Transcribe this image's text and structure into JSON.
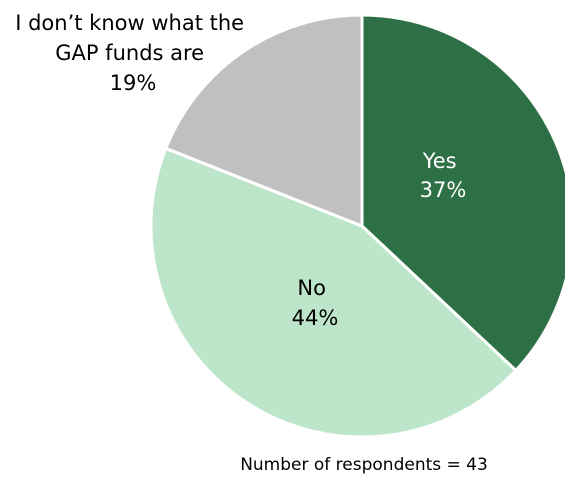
{
  "chart_data": {
    "type": "pie",
    "slices": [
      {
        "label": "Yes",
        "value": 37,
        "value_label": "37%",
        "color": "#2e7045",
        "text_color": "#ffffff"
      },
      {
        "label": "No",
        "value": 44,
        "value_label": "44%",
        "color": "#bde5ca",
        "text_color": "#000000"
      },
      {
        "label": "I don’t know what the GAP funds are",
        "label_lines": [
          "I don’t know what the",
          "GAP funds are"
        ],
        "value": 19,
        "value_label": "19%",
        "color": "#c0c0c0",
        "text_color": "#000000"
      }
    ],
    "start": "12 o'clock",
    "direction": "clockwise",
    "slice_border_color": "#ffffff",
    "legend": "none",
    "footnote": "Number of respondents = 43"
  }
}
